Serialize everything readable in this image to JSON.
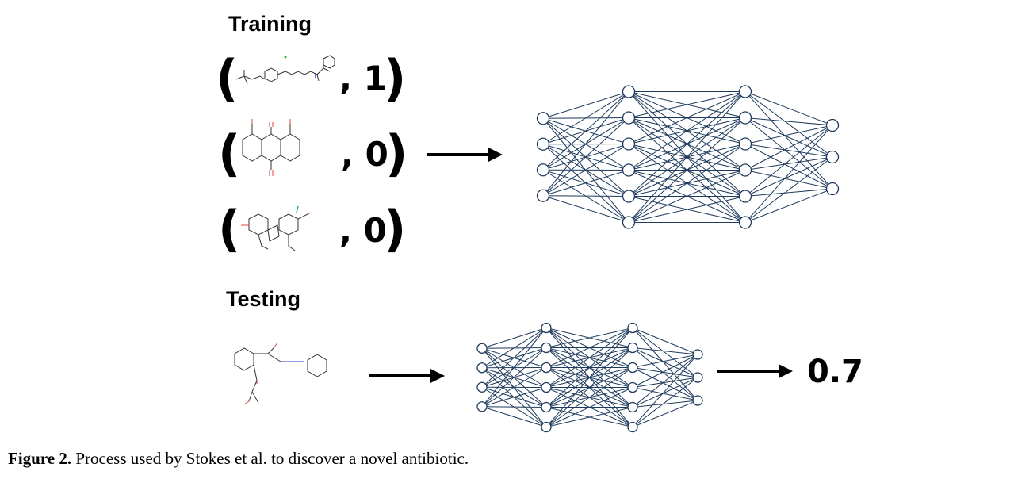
{
  "training": {
    "heading": "Training",
    "samples": [
      {
        "label": "1",
        "molecule": "benzethonium-like-molecule"
      },
      {
        "label": "0",
        "molecule": "dihydroxyanthraquinone-molecule"
      },
      {
        "label": "0",
        "molecule": "griseofulvin-like-molecule"
      }
    ],
    "paren_open": "(",
    "paren_close": ")",
    "comma": ","
  },
  "testing": {
    "heading": "Testing",
    "molecule": "aspirin-amide-molecule",
    "prediction": "0.7"
  },
  "network": {
    "layers": [
      4,
      6,
      6,
      3
    ],
    "node_color": "#ffffff",
    "edge_color": "#1e3a5c"
  },
  "caption": {
    "label": "Figure 2.",
    "text": " Process used by Stokes et al. to discover a novel antibiotic."
  }
}
